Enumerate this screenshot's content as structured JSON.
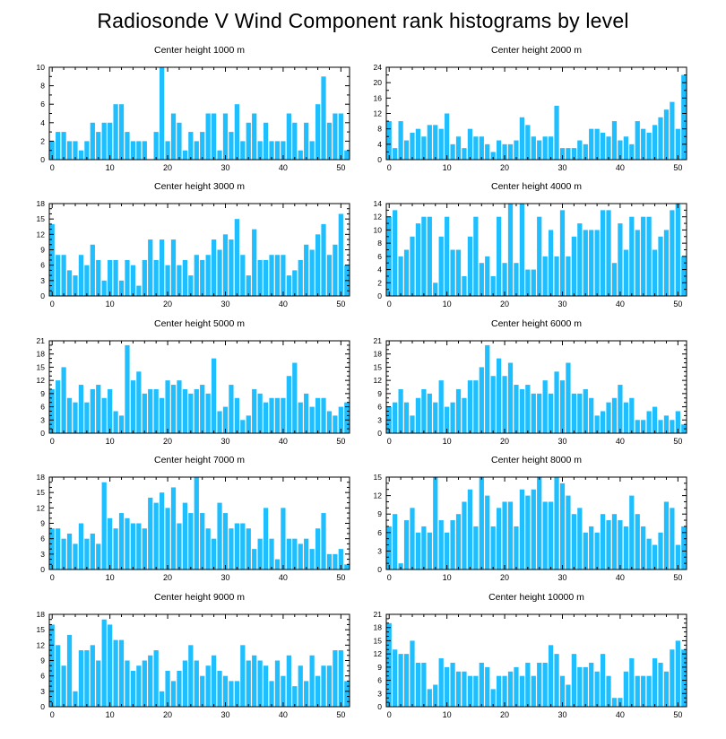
{
  "title": "Radiosonde V Wind Component rank histograms by level",
  "colors": {
    "bar": "#1fbfff",
    "bar_edge": "#ffffff",
    "axis": "#000000"
  },
  "chart_data": [
    {
      "type": "bar",
      "title": "Center height 1000 m",
      "xlim": [
        -0.5,
        51.5
      ],
      "ylim": [
        0,
        10
      ],
      "xticks": [
        0,
        10,
        20,
        30,
        40,
        50
      ],
      "yticks": [
        0,
        2,
        4,
        6,
        8,
        10
      ],
      "values": [
        2,
        3,
        3,
        2,
        2,
        1,
        2,
        4,
        3,
        4,
        4,
        6,
        6,
        3,
        2,
        2,
        2,
        0,
        3,
        10,
        2,
        5,
        4,
        1,
        3,
        2,
        3,
        5,
        5,
        1,
        5,
        3,
        6,
        2,
        4,
        5,
        2,
        4,
        2,
        2,
        2,
        5,
        4,
        1,
        4,
        2,
        6,
        9,
        4,
        5,
        5,
        1
      ]
    },
    {
      "type": "bar",
      "title": "Center height 2000 m",
      "xlim": [
        -0.5,
        51.5
      ],
      "ylim": [
        0,
        24
      ],
      "xticks": [
        0,
        10,
        20,
        30,
        40,
        50
      ],
      "yticks": [
        0,
        4,
        8,
        12,
        16,
        20,
        24
      ],
      "values": [
        10,
        3,
        10,
        5,
        7,
        8,
        6,
        9,
        9,
        8,
        12,
        4,
        6,
        3,
        8,
        6,
        6,
        4,
        2,
        5,
        4,
        4,
        5,
        11,
        9,
        6,
        5,
        6,
        6,
        14,
        3,
        3,
        3,
        5,
        4,
        8,
        8,
        7,
        6,
        10,
        5,
        6,
        4,
        10,
        8,
        7,
        9,
        11,
        13,
        15,
        8,
        22
      ]
    },
    {
      "type": "bar",
      "title": "Center height 3000 m",
      "xlim": [
        -0.5,
        51.5
      ],
      "ylim": [
        0,
        18
      ],
      "xticks": [
        0,
        10,
        20,
        30,
        40,
        50
      ],
      "yticks": [
        0,
        3,
        6,
        9,
        12,
        15,
        18
      ],
      "values": [
        14,
        8,
        8,
        5,
        4,
        8,
        6,
        10,
        7,
        3,
        7,
        7,
        3,
        7,
        6,
        2,
        7,
        11,
        7,
        11,
        6,
        11,
        6,
        7,
        4,
        8,
        7,
        8,
        11,
        9,
        12,
        11,
        15,
        8,
        4,
        13,
        7,
        7,
        8,
        8,
        8,
        4,
        5,
        7,
        10,
        9,
        12,
        14,
        8,
        10,
        16,
        6
      ]
    },
    {
      "type": "bar",
      "title": "Center height 4000 m",
      "xlim": [
        -0.5,
        51.5
      ],
      "ylim": [
        0,
        14
      ],
      "xticks": [
        0,
        10,
        20,
        30,
        40,
        50
      ],
      "yticks": [
        0,
        2,
        4,
        6,
        8,
        10,
        12,
        14
      ],
      "values": [
        12,
        13,
        6,
        7,
        9,
        11,
        12,
        12,
        2,
        9,
        12,
        7,
        7,
        3,
        9,
        12,
        5,
        6,
        3,
        12,
        5,
        14,
        5,
        14,
        4,
        4,
        12,
        6,
        10,
        6,
        13,
        6,
        9,
        11,
        10,
        10,
        10,
        13,
        13,
        5,
        11,
        7,
        12,
        10,
        12,
        12,
        7,
        9,
        10,
        13,
        14,
        6
      ]
    },
    {
      "type": "bar",
      "title": "Center height 5000 m",
      "xlim": [
        -0.5,
        51.5
      ],
      "ylim": [
        0,
        21
      ],
      "xticks": [
        0,
        10,
        20,
        30,
        40,
        50
      ],
      "yticks": [
        0,
        3,
        6,
        9,
        12,
        15,
        18,
        21
      ],
      "values": [
        10,
        12,
        15,
        8,
        7,
        11,
        7,
        10,
        11,
        8,
        10,
        5,
        4,
        20,
        12,
        14,
        9,
        10,
        10,
        8,
        12,
        11,
        12,
        10,
        9,
        10,
        11,
        9,
        17,
        5,
        6,
        11,
        8,
        3,
        4,
        10,
        9,
        7,
        8,
        8,
        8,
        13,
        16,
        7,
        9,
        6,
        8,
        8,
        5,
        4,
        6,
        7
      ]
    },
    {
      "type": "bar",
      "title": "Center height 6000 m",
      "xlim": [
        -0.5,
        51.5
      ],
      "ylim": [
        0,
        21
      ],
      "xticks": [
        0,
        10,
        20,
        30,
        40,
        50
      ],
      "yticks": [
        0,
        3,
        6,
        9,
        12,
        15,
        18,
        21
      ],
      "values": [
        6,
        7,
        10,
        7,
        4,
        8,
        10,
        9,
        7,
        12,
        6,
        7,
        10,
        8,
        12,
        12,
        15,
        20,
        13,
        17,
        13,
        16,
        11,
        10,
        11,
        9,
        9,
        12,
        9,
        14,
        12,
        16,
        9,
        9,
        10,
        8,
        4,
        5,
        7,
        8,
        11,
        7,
        8,
        3,
        3,
        5,
        6,
        3,
        4,
        3,
        5,
        2
      ]
    },
    {
      "type": "bar",
      "title": "Center height 7000 m",
      "xlim": [
        -0.5,
        51.5
      ],
      "ylim": [
        0,
        18
      ],
      "xticks": [
        0,
        10,
        20,
        30,
        40,
        50
      ],
      "yticks": [
        0,
        3,
        6,
        9,
        12,
        15,
        18
      ],
      "values": [
        8,
        8,
        6,
        7,
        5,
        9,
        6,
        7,
        5,
        17,
        10,
        8,
        11,
        10,
        9,
        9,
        8,
        14,
        13,
        15,
        12,
        16,
        9,
        13,
        11,
        18,
        11,
        8,
        6,
        13,
        11,
        8,
        9,
        9,
        8,
        4,
        6,
        12,
        6,
        2,
        12,
        6,
        6,
        5,
        6,
        4,
        8,
        11,
        3,
        3,
        4,
        1
      ]
    },
    {
      "type": "bar",
      "title": "Center height 8000 m",
      "xlim": [
        -0.5,
        51.5
      ],
      "ylim": [
        0,
        15
      ],
      "xticks": [
        0,
        10,
        20,
        30,
        40,
        50
      ],
      "yticks": [
        0,
        3,
        6,
        9,
        12,
        15
      ],
      "values": [
        7,
        9,
        1,
        8,
        10,
        6,
        7,
        6,
        15,
        8,
        6,
        8,
        9,
        11,
        13,
        7,
        15,
        12,
        7,
        10,
        11,
        11,
        7,
        13,
        12,
        13,
        15,
        11,
        11,
        15,
        14,
        12,
        9,
        10,
        6,
        7,
        6,
        9,
        8,
        9,
        8,
        7,
        12,
        9,
        7,
        5,
        4,
        6,
        11,
        10,
        4,
        7
      ]
    },
    {
      "type": "bar",
      "title": "Center height 9000 m",
      "xlim": [
        -0.5,
        51.5
      ],
      "ylim": [
        0,
        18
      ],
      "xticks": [
        0,
        10,
        20,
        30,
        40,
        50
      ],
      "yticks": [
        0,
        3,
        6,
        9,
        12,
        15,
        18
      ],
      "values": [
        16,
        12,
        8,
        14,
        3,
        11,
        11,
        12,
        9,
        17,
        16,
        13,
        13,
        9,
        7,
        8,
        9,
        10,
        11,
        3,
        7,
        5,
        7,
        9,
        12,
        9,
        6,
        8,
        10,
        7,
        6,
        5,
        5,
        12,
        9,
        10,
        9,
        8,
        5,
        9,
        6,
        10,
        4,
        8,
        5,
        10,
        6,
        8,
        8,
        11,
        11,
        5
      ]
    },
    {
      "type": "bar",
      "title": "Center height 10000 m",
      "xlim": [
        -0.5,
        51.5
      ],
      "ylim": [
        0,
        21
      ],
      "xticks": [
        0,
        10,
        20,
        30,
        40,
        50
      ],
      "yticks": [
        0,
        3,
        6,
        9,
        12,
        15,
        18,
        21
      ],
      "values": [
        19,
        13,
        12,
        12,
        15,
        10,
        10,
        4,
        5,
        11,
        9,
        10,
        8,
        8,
        7,
        7,
        10,
        9,
        4,
        7,
        7,
        8,
        9,
        7,
        10,
        7,
        10,
        10,
        14,
        12,
        7,
        5,
        12,
        9,
        9,
        10,
        8,
        12,
        7,
        2,
        2,
        8,
        11,
        7,
        7,
        7,
        11,
        10,
        8,
        13,
        15,
        13
      ]
    }
  ]
}
